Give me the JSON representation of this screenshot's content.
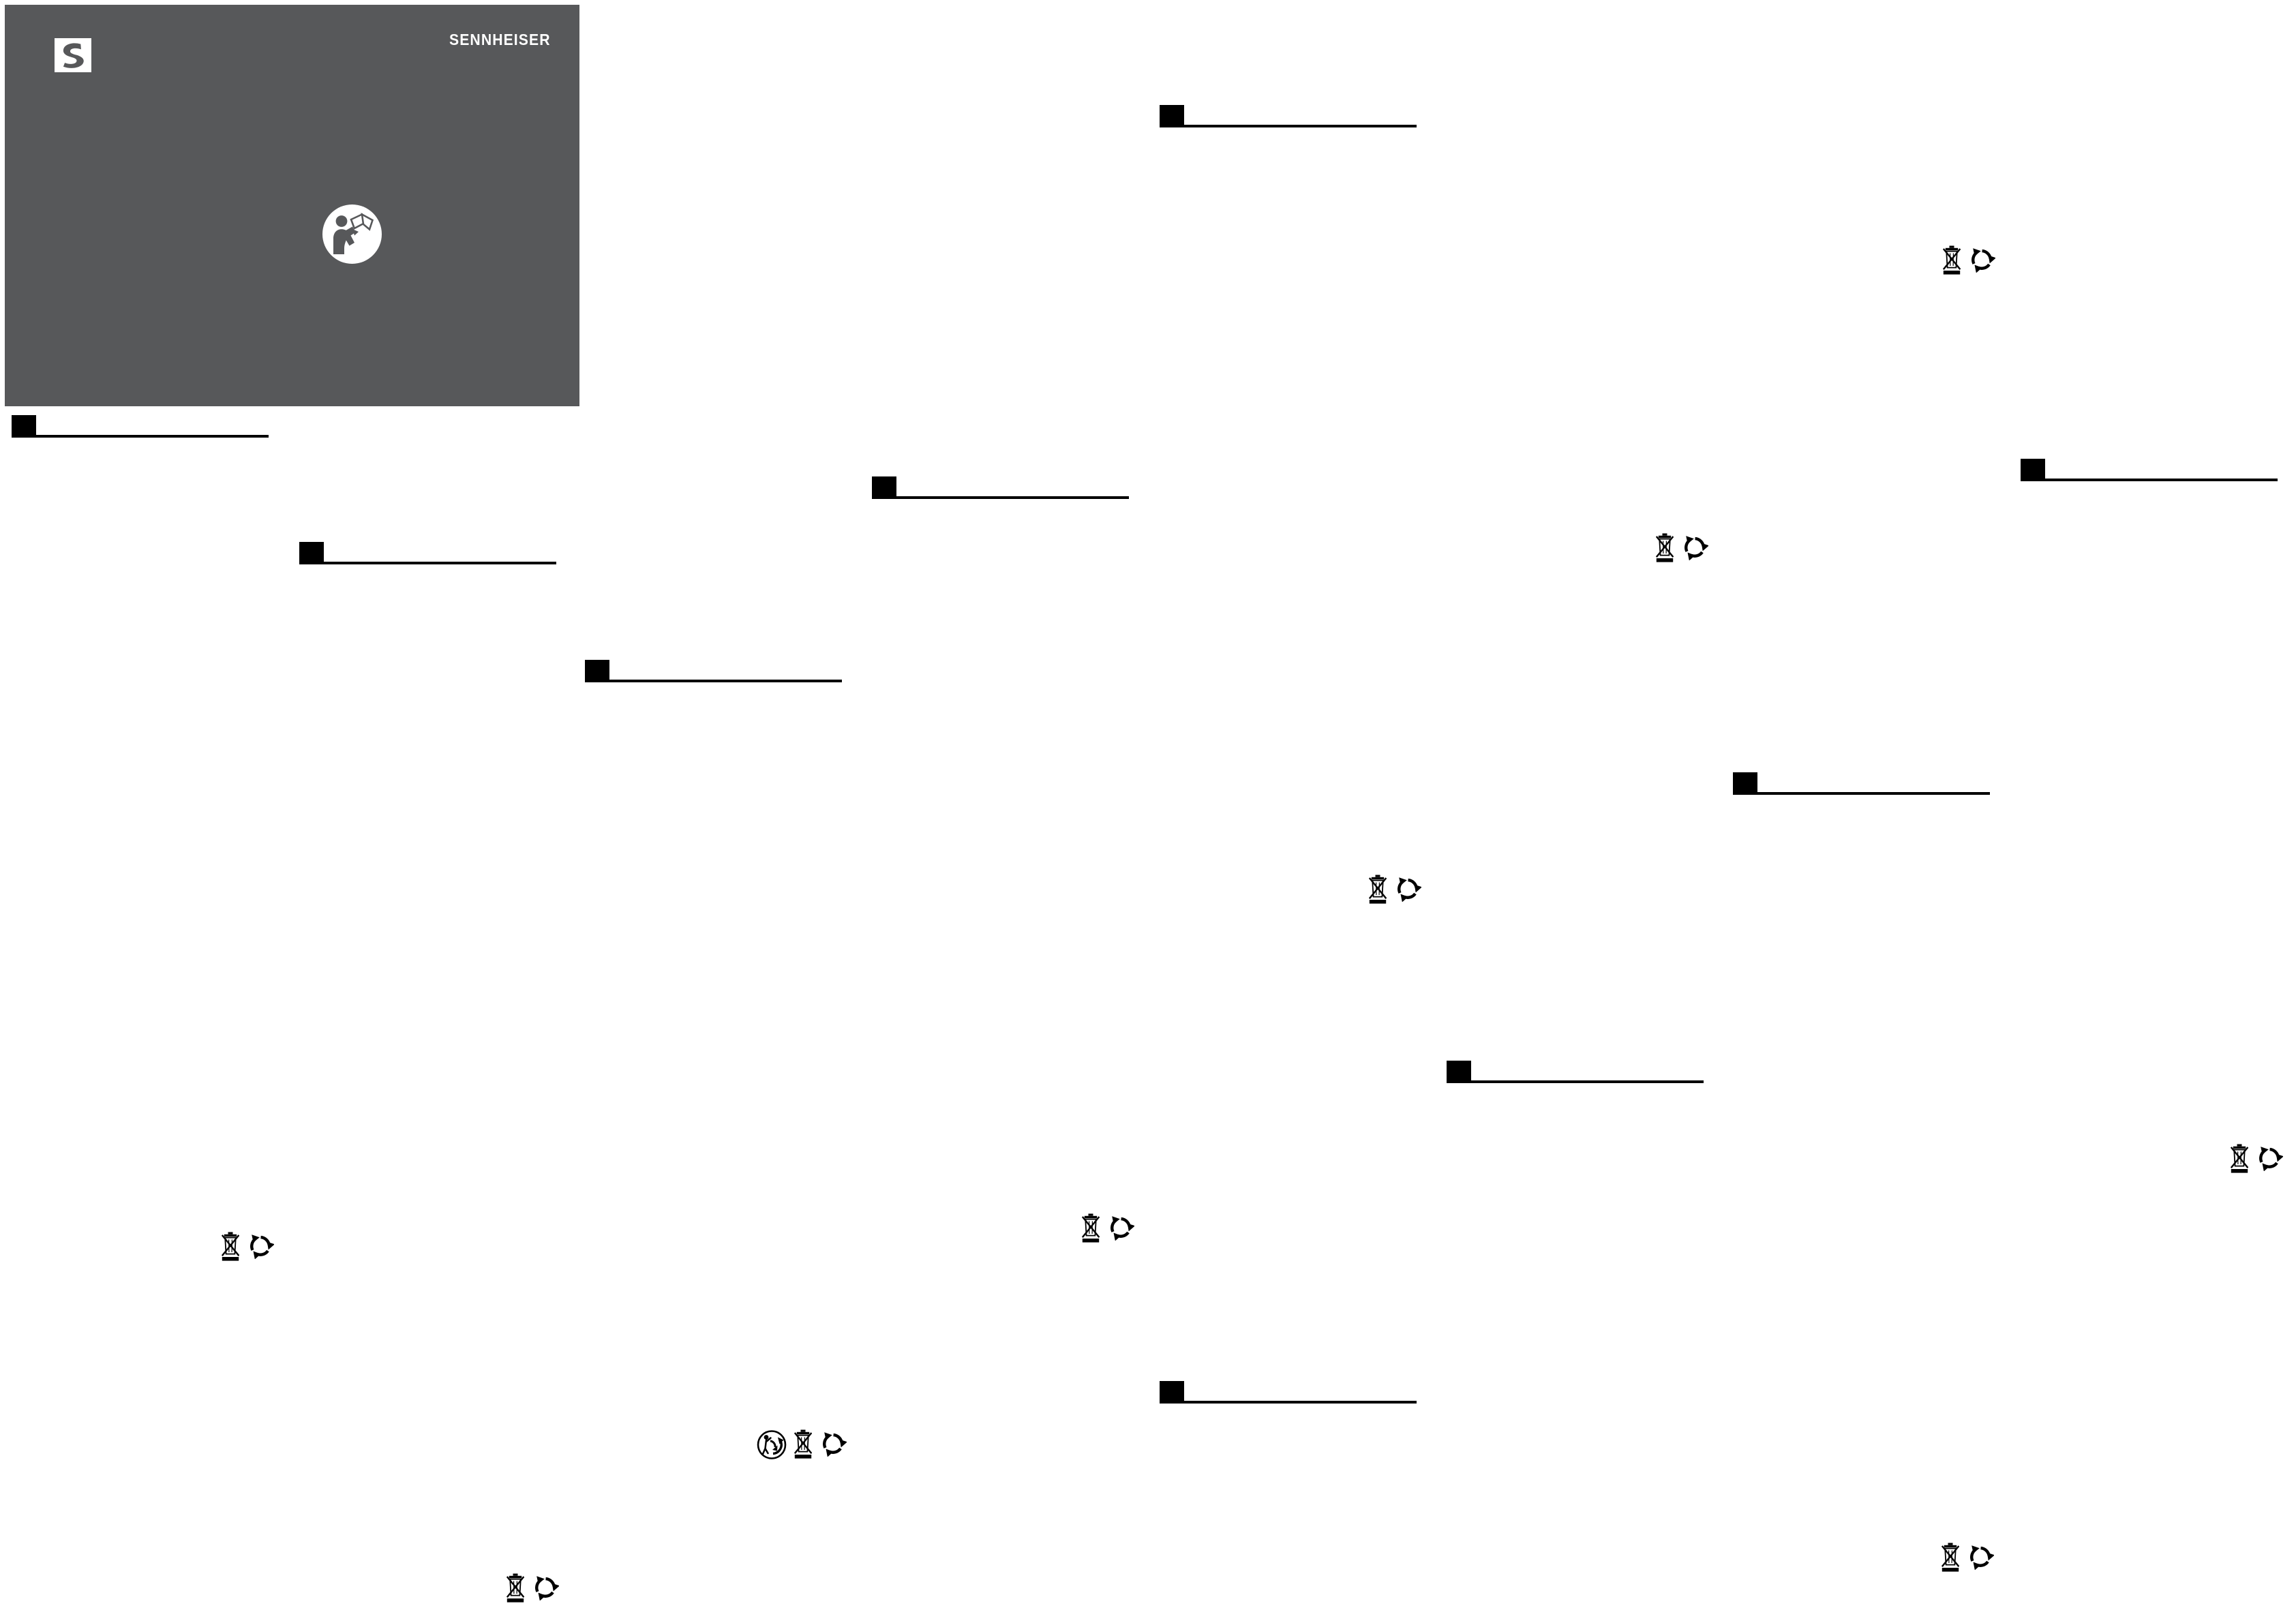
{
  "cover": {
    "brand_wordmark": "SENNHEISER",
    "logo_icon": "sennheiser-s-logo-icon",
    "manual_icon": "read-instruction-manual-icon",
    "background_color": "#57585a"
  },
  "colors": {
    "paper": "#ffffff",
    "ink": "#000000",
    "cover_background": "#57585a"
  },
  "section_markers": {
    "count": 9,
    "style": "black-square-with-underline-rule"
  },
  "disposal_groups": [
    {
      "icons": [
        "weee-crossed-bin-icon",
        "recycling-mobius-icon"
      ]
    },
    {
      "icons": [
        "weee-crossed-bin-icon",
        "recycling-mobius-icon"
      ]
    },
    {
      "icons": [
        "weee-crossed-bin-icon",
        "recycling-mobius-icon"
      ]
    },
    {
      "icons": [
        "weee-crossed-bin-icon",
        "recycling-mobius-icon"
      ]
    },
    {
      "icons": [
        "weee-crossed-bin-icon",
        "recycling-mobius-icon"
      ]
    },
    {
      "icons": [
        "weee-crossed-bin-icon",
        "recycling-mobius-icon"
      ]
    },
    {
      "icons": [
        "triman-icon",
        "weee-crossed-bin-icon",
        "recycling-mobius-icon"
      ]
    },
    {
      "icons": [
        "weee-crossed-bin-icon",
        "recycling-mobius-icon"
      ]
    },
    {
      "icons": [
        "weee-crossed-bin-icon",
        "recycling-mobius-icon"
      ]
    }
  ]
}
